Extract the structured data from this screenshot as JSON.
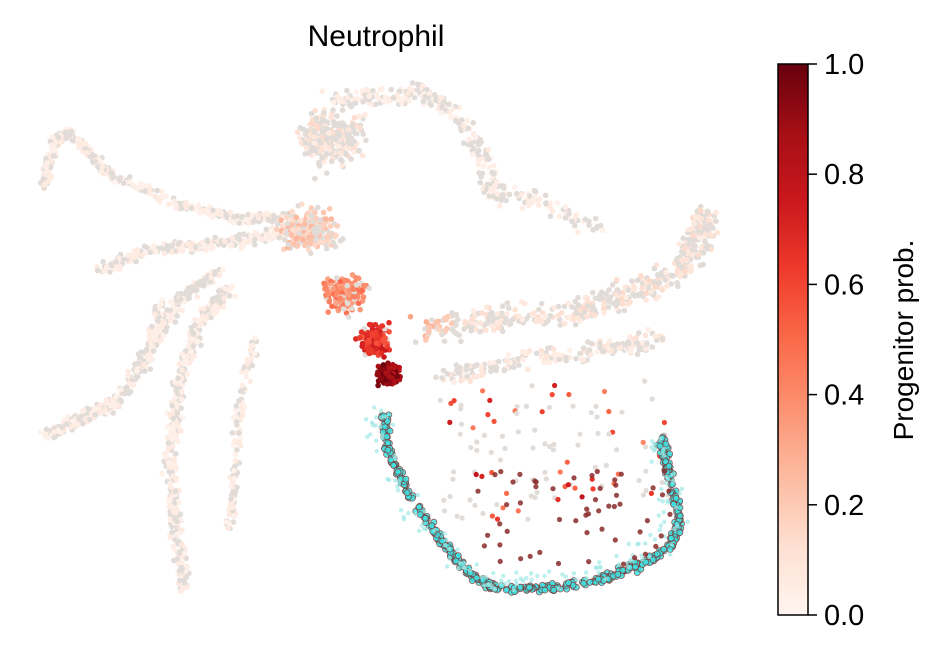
{
  "chart_data": {
    "type": "scatter",
    "title": "Neutrophil",
    "colorbar": {
      "label": "Progenitor prob.",
      "range": [
        0.0,
        1.0
      ],
      "ticks": [
        "0.0",
        "0.2",
        "0.4",
        "0.6",
        "0.8",
        "1.0"
      ],
      "tick_values": [
        0.0,
        0.2,
        0.4,
        0.6,
        0.8,
        1.0
      ],
      "colormap": "Reds",
      "colormap_stops": [
        "#fff5f0",
        "#fee0d2",
        "#fcbba1",
        "#fc9272",
        "#fb6a4a",
        "#ef3b2c",
        "#cb181d",
        "#a50f15",
        "#67000d"
      ]
    },
    "axes_visible": false,
    "grid": false,
    "background_point_color": "#e2dcd8",
    "terminal_state_color": "#3fe3e3",
    "terminal_state_edge_color": "#7a3a3a"
  }
}
